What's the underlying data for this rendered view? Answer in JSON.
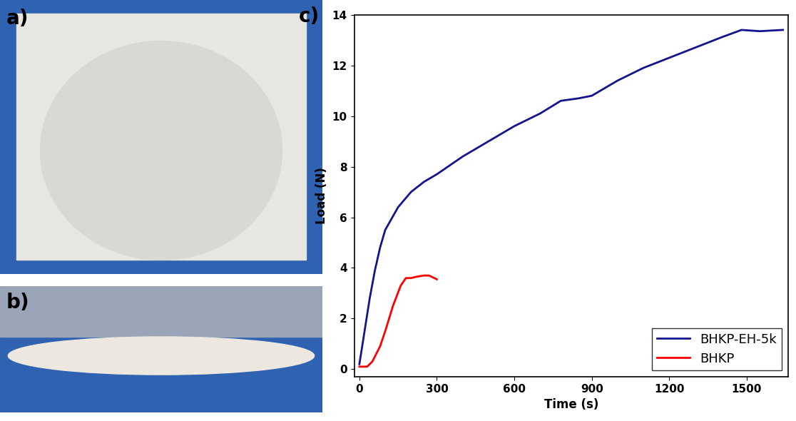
{
  "panel_labels": [
    "a)",
    "b)",
    "c)"
  ],
  "chart_data": {
    "type": "line",
    "x_label": "Time (s)",
    "y_label": "Load (N)",
    "xlim": [
      -20,
      1660
    ],
    "xticks": [
      0,
      300,
      600,
      900,
      1200,
      1500
    ],
    "ylim": [
      -0.3,
      14
    ],
    "yticks": [
      0,
      2,
      4,
      6,
      8,
      10,
      12,
      14
    ],
    "grid": false,
    "legend": "lower right",
    "series": [
      {
        "name": "BHKP-EH-5k",
        "color": "#14148c",
        "x": [
          0,
          20,
          40,
          60,
          80,
          100,
          150,
          200,
          250,
          300,
          400,
          500,
          600,
          700,
          780,
          850,
          900,
          1000,
          1100,
          1200,
          1300,
          1400,
          1480,
          1550,
          1640
        ],
        "values": [
          0.2,
          1.5,
          2.8,
          3.9,
          4.8,
          5.5,
          6.4,
          7.0,
          7.4,
          7.7,
          8.4,
          9.0,
          9.6,
          10.1,
          10.6,
          10.7,
          10.8,
          11.4,
          11.9,
          12.3,
          12.7,
          13.1,
          13.4,
          13.35,
          13.4
        ]
      },
      {
        "name": "BHKP",
        "color": "#ff0000",
        "x": [
          0,
          30,
          50,
          80,
          100,
          130,
          160,
          180,
          200,
          220,
          250,
          270,
          290,
          300
        ],
        "values": [
          0.1,
          0.1,
          0.3,
          0.9,
          1.5,
          2.5,
          3.3,
          3.6,
          3.6,
          3.65,
          3.7,
          3.7,
          3.6,
          3.55
        ]
      }
    ]
  }
}
